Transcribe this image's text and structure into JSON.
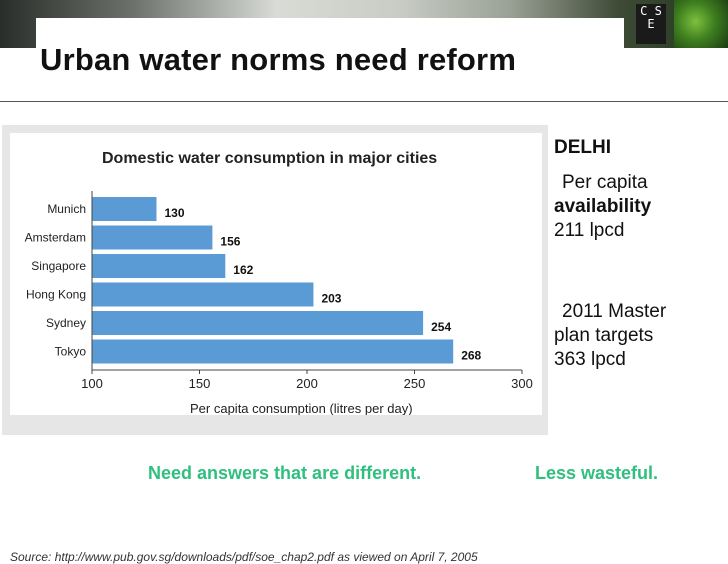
{
  "slide": {
    "title": "Urban water norms need reform",
    "logo_text": "C S E"
  },
  "sidebar": {
    "city": "DELHI",
    "per_capita_line1": "Per capita",
    "per_capita_line2": "availability",
    "per_capita_line3": "211 lpcd",
    "master_line1": "2011 Master",
    "master_line2": "plan targets",
    "master_line3": "363 lpcd"
  },
  "footer": {
    "left": "Need answers that are different.",
    "right": "Less wasteful."
  },
  "source": "Source: http://www.pub.gov.sg/downloads/pdf/soe_chap2.pdf as viewed on April 7, 2005",
  "colors": {
    "bar": "#5b9bd5",
    "accent_text": "#2fbf7f"
  },
  "chart_data": {
    "type": "bar",
    "orientation": "horizontal",
    "title": "Domestic water consumption in major cities",
    "xlabel": "Per capita consumption (litres per day)",
    "ylabel": "",
    "categories": [
      "Munich",
      "Amsterdam",
      "Singapore",
      "Hong Kong",
      "Sydney",
      "Tokyo"
    ],
    "values": [
      130,
      156,
      162,
      203,
      254,
      268
    ],
    "xlim": [
      100,
      300
    ],
    "xticks": [
      100,
      150,
      200,
      250,
      300
    ],
    "grid": false,
    "legend": "none"
  }
}
